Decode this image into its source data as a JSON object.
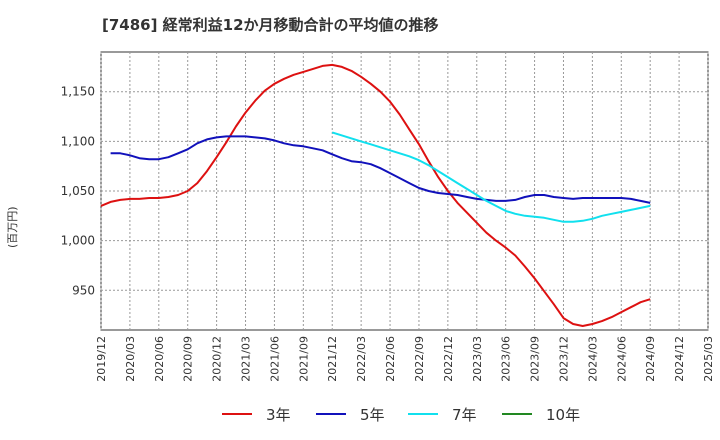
{
  "chart_data": {
    "type": "line",
    "title": "[7486]  経常利益12か月移動合計の平均値の推移",
    "ylabel": "(百万円)",
    "xlabel": "",
    "ylim": [
      910,
      1190
    ],
    "yticks": [
      950,
      1000,
      1050,
      1100,
      1150
    ],
    "ytick_labels": [
      "950",
      "1,000",
      "1,050",
      "1,100",
      "1,150"
    ],
    "xlim": [
      "2019/12",
      "2025/03"
    ],
    "xtick_labels": [
      "2019/12",
      "2020/03",
      "2020/06",
      "2020/09",
      "2020/12",
      "2021/03",
      "2021/06",
      "2021/09",
      "2021/12",
      "2022/03",
      "2022/06",
      "2022/09",
      "2022/12",
      "2023/03",
      "2023/06",
      "2023/09",
      "2023/12",
      "2024/03",
      "2024/06",
      "2024/09",
      "2024/12",
      "2025/03"
    ],
    "grid": true,
    "legend_position": "bottom",
    "series": [
      {
        "name": "3年",
        "color": "#dd1111",
        "points": [
          [
            "2019/12",
            1035
          ],
          [
            "2020/01",
            1039
          ],
          [
            "2020/02",
            1041
          ],
          [
            "2020/03",
            1042
          ],
          [
            "2020/04",
            1042
          ],
          [
            "2020/05",
            1043
          ],
          [
            "2020/06",
            1043
          ],
          [
            "2020/07",
            1044
          ],
          [
            "2020/08",
            1046
          ],
          [
            "2020/09",
            1050
          ],
          [
            "2020/10",
            1058
          ],
          [
            "2020/11",
            1070
          ],
          [
            "2020/12",
            1084
          ],
          [
            "2021/01",
            1099
          ],
          [
            "2021/02",
            1115
          ],
          [
            "2021/03",
            1129
          ],
          [
            "2021/04",
            1141
          ],
          [
            "2021/05",
            1151
          ],
          [
            "2021/06",
            1158
          ],
          [
            "2021/07",
            1163
          ],
          [
            "2021/08",
            1167
          ],
          [
            "2021/09",
            1170
          ],
          [
            "2021/10",
            1173
          ],
          [
            "2021/11",
            1176
          ],
          [
            "2021/12",
            1177
          ],
          [
            "2022/01",
            1175
          ],
          [
            "2022/02",
            1171
          ],
          [
            "2022/03",
            1165
          ],
          [
            "2022/04",
            1158
          ],
          [
            "2022/05",
            1150
          ],
          [
            "2022/06",
            1140
          ],
          [
            "2022/07",
            1127
          ],
          [
            "2022/08",
            1112
          ],
          [
            "2022/09",
            1097
          ],
          [
            "2022/10",
            1080
          ],
          [
            "2022/11",
            1064
          ],
          [
            "2022/12",
            1050
          ],
          [
            "2023/01",
            1038
          ],
          [
            "2023/02",
            1028
          ],
          [
            "2023/03",
            1018
          ],
          [
            "2023/04",
            1008
          ],
          [
            "2023/05",
            1000
          ],
          [
            "2023/06",
            993
          ],
          [
            "2023/07",
            985
          ],
          [
            "2023/08",
            974
          ],
          [
            "2023/09",
            962
          ],
          [
            "2023/10",
            949
          ],
          [
            "2023/11",
            936
          ],
          [
            "2023/12",
            922
          ],
          [
            "2024/01",
            916
          ],
          [
            "2024/02",
            914
          ],
          [
            "2024/03",
            916
          ],
          [
            "2024/04",
            919
          ],
          [
            "2024/05",
            923
          ],
          [
            "2024/06",
            928
          ],
          [
            "2024/07",
            933
          ],
          [
            "2024/08",
            938
          ],
          [
            "2024/09",
            941
          ]
        ]
      },
      {
        "name": "5年",
        "color": "#1111bb",
        "points": [
          [
            "2020/01",
            1088
          ],
          [
            "2020/02",
            1088
          ],
          [
            "2020/03",
            1086
          ],
          [
            "2020/04",
            1083
          ],
          [
            "2020/05",
            1082
          ],
          [
            "2020/06",
            1082
          ],
          [
            "2020/07",
            1084
          ],
          [
            "2020/08",
            1088
          ],
          [
            "2020/09",
            1092
          ],
          [
            "2020/10",
            1098
          ],
          [
            "2020/11",
            1102
          ],
          [
            "2020/12",
            1104
          ],
          [
            "2021/01",
            1105
          ],
          [
            "2021/02",
            1105
          ],
          [
            "2021/03",
            1105
          ],
          [
            "2021/04",
            1104
          ],
          [
            "2021/05",
            1103
          ],
          [
            "2021/06",
            1101
          ],
          [
            "2021/07",
            1098
          ],
          [
            "2021/08",
            1096
          ],
          [
            "2021/09",
            1095
          ],
          [
            "2021/10",
            1093
          ],
          [
            "2021/11",
            1091
          ],
          [
            "2021/12",
            1087
          ],
          [
            "2022/01",
            1083
          ],
          [
            "2022/02",
            1080
          ],
          [
            "2022/03",
            1079
          ],
          [
            "2022/04",
            1077
          ],
          [
            "2022/05",
            1073
          ],
          [
            "2022/06",
            1068
          ],
          [
            "2022/07",
            1063
          ],
          [
            "2022/08",
            1058
          ],
          [
            "2022/09",
            1053
          ],
          [
            "2022/10",
            1050
          ],
          [
            "2022/11",
            1048
          ],
          [
            "2022/12",
            1047
          ],
          [
            "2023/01",
            1046
          ],
          [
            "2023/02",
            1044
          ],
          [
            "2023/03",
            1042
          ],
          [
            "2023/04",
            1041
          ],
          [
            "2023/05",
            1040
          ],
          [
            "2023/06",
            1040
          ],
          [
            "2023/07",
            1041
          ],
          [
            "2023/08",
            1044
          ],
          [
            "2023/09",
            1046
          ],
          [
            "2023/10",
            1046
          ],
          [
            "2023/11",
            1044
          ],
          [
            "2023/12",
            1043
          ],
          [
            "2024/01",
            1042
          ],
          [
            "2024/02",
            1043
          ],
          [
            "2024/03",
            1043
          ],
          [
            "2024/04",
            1043
          ],
          [
            "2024/05",
            1043
          ],
          [
            "2024/06",
            1043
          ],
          [
            "2024/07",
            1042
          ],
          [
            "2024/08",
            1040
          ],
          [
            "2024/09",
            1038
          ]
        ]
      },
      {
        "name": "7年",
        "color": "#11e0ee",
        "points": [
          [
            "2021/12",
            1109
          ],
          [
            "2022/01",
            1106
          ],
          [
            "2022/02",
            1103
          ],
          [
            "2022/03",
            1100
          ],
          [
            "2022/04",
            1097
          ],
          [
            "2022/05",
            1094
          ],
          [
            "2022/06",
            1091
          ],
          [
            "2022/07",
            1088
          ],
          [
            "2022/08",
            1085
          ],
          [
            "2022/09",
            1081
          ],
          [
            "2022/10",
            1076
          ],
          [
            "2022/11",
            1070
          ],
          [
            "2022/12",
            1064
          ],
          [
            "2023/01",
            1058
          ],
          [
            "2023/02",
            1052
          ],
          [
            "2023/03",
            1046
          ],
          [
            "2023/04",
            1040
          ],
          [
            "2023/05",
            1035
          ],
          [
            "2023/06",
            1030
          ],
          [
            "2023/07",
            1027
          ],
          [
            "2023/08",
            1025
          ],
          [
            "2023/09",
            1024
          ],
          [
            "2023/10",
            1023
          ],
          [
            "2023/11",
            1021
          ],
          [
            "2023/12",
            1019
          ],
          [
            "2024/01",
            1019
          ],
          [
            "2024/02",
            1020
          ],
          [
            "2024/03",
            1022
          ],
          [
            "2024/04",
            1025
          ],
          [
            "2024/05",
            1027
          ],
          [
            "2024/06",
            1029
          ],
          [
            "2024/07",
            1031
          ],
          [
            "2024/08",
            1033
          ],
          [
            "2024/09",
            1035
          ]
        ]
      },
      {
        "name": "10年",
        "color": "#228822",
        "points": []
      }
    ]
  }
}
